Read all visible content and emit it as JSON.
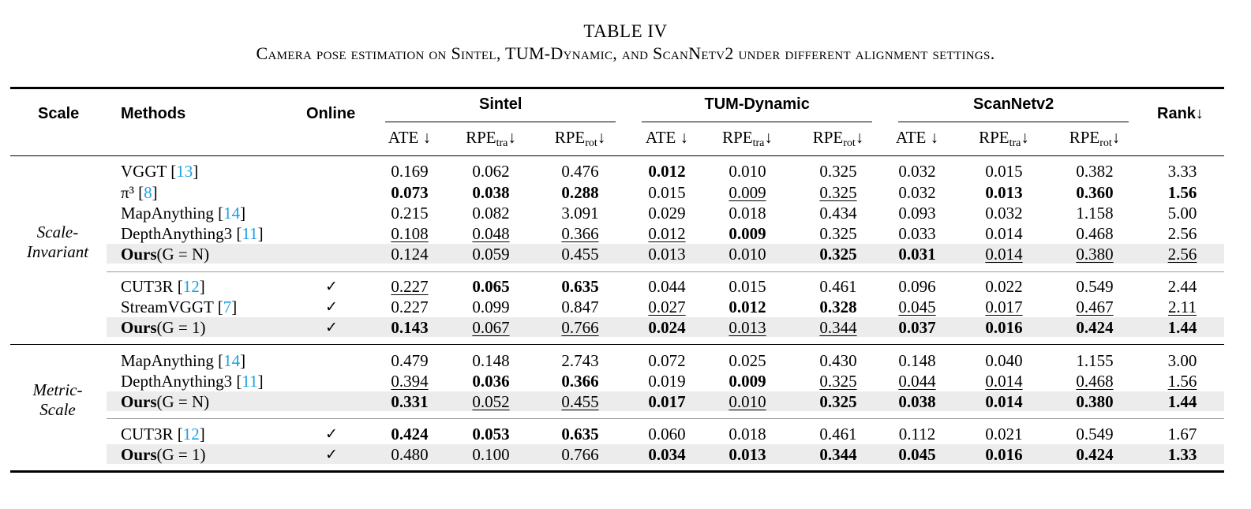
{
  "caption": {
    "title": "TABLE IV",
    "text": "Camera pose estimation on Sintel, TUM-Dynamic, and ScanNetv2 under different alignment settings."
  },
  "headers": {
    "scale": "Scale",
    "methods": "Methods",
    "online": "Online",
    "rank": "Rank↓",
    "groups": [
      "Sintel",
      "TUM-Dynamic",
      "ScanNetv2"
    ],
    "metrics": [
      {
        "base": "ATE ↓",
        "sub": ""
      },
      {
        "base": "RPE",
        "sub": "tra",
        "arrow": "↓"
      },
      {
        "base": "RPE",
        "sub": "rot",
        "arrow": "↓"
      }
    ]
  },
  "sections": [
    {
      "label": [
        "Scale-",
        "Invariant"
      ],
      "blocks": [
        [
          {
            "name": "VGGT",
            "ref": "13",
            "online": "",
            "highlight": false,
            "vals": [
              "0.169",
              "0.062",
              "0.476",
              "0.012",
              "0.010",
              "0.325",
              "0.032",
              "0.015",
              "0.382",
              "3.33"
            ],
            "fmt": [
              "",
              "",
              "",
              "b",
              "",
              "",
              "",
              "",
              "",
              ""
            ]
          },
          {
            "name": "π³",
            "ref": "8",
            "online": "",
            "highlight": false,
            "vals": [
              "0.073",
              "0.038",
              "0.288",
              "0.015",
              "0.009",
              "0.325",
              "0.032",
              "0.013",
              "0.360",
              "1.56"
            ],
            "fmt": [
              "b",
              "b",
              "b",
              "",
              "u",
              "u",
              "",
              "b",
              "b",
              "b"
            ]
          },
          {
            "name": "MapAnything",
            "ref": "14",
            "online": "",
            "highlight": false,
            "vals": [
              "0.215",
              "0.082",
              "3.091",
              "0.029",
              "0.018",
              "0.434",
              "0.093",
              "0.032",
              "1.158",
              "5.00"
            ],
            "fmt": [
              "",
              "",
              "",
              "",
              "",
              "",
              "",
              "",
              "",
              ""
            ]
          },
          {
            "name": "DepthAnything3",
            "ref": "11",
            "online": "",
            "highlight": false,
            "vals": [
              "0.108",
              "0.048",
              "0.366",
              "0.012",
              "0.009",
              "0.325",
              "0.033",
              "0.014",
              "0.468",
              "2.56"
            ],
            "fmt": [
              "u",
              "u",
              "u",
              "u",
              "b",
              "",
              "",
              "",
              "",
              ""
            ]
          },
          {
            "name": "Ours",
            "ours": true,
            "suffix": "(G = N)",
            "online": "",
            "highlight": true,
            "vals": [
              "0.124",
              "0.059",
              "0.455",
              "0.013",
              "0.010",
              "0.325",
              "0.031",
              "0.014",
              "0.380",
              "2.56"
            ],
            "fmt": [
              "",
              "",
              "",
              "",
              "",
              "b",
              "b",
              "u",
              "u",
              "u"
            ]
          }
        ],
        [
          {
            "name": "CUT3R",
            "ref": "12",
            "online": "✓",
            "highlight": false,
            "vals": [
              "0.227",
              "0.065",
              "0.635",
              "0.044",
              "0.015",
              "0.461",
              "0.096",
              "0.022",
              "0.549",
              "2.44"
            ],
            "fmt": [
              "u",
              "b",
              "b",
              "",
              "",
              "",
              "",
              "",
              "",
              ""
            ]
          },
          {
            "name": "StreamVGGT",
            "ref": "7",
            "online": "✓",
            "highlight": false,
            "vals": [
              "0.227",
              "0.099",
              "0.847",
              "0.027",
              "0.012",
              "0.328",
              "0.045",
              "0.017",
              "0.467",
              "2.11"
            ],
            "fmt": [
              "",
              "",
              "",
              "u",
              "b",
              "b",
              "u",
              "u",
              "u",
              "u"
            ]
          },
          {
            "name": "Ours",
            "ours": true,
            "suffix": "(G = 1)",
            "online": "✓",
            "highlight": true,
            "vals": [
              "0.143",
              "0.067",
              "0.766",
              "0.024",
              "0.013",
              "0.344",
              "0.037",
              "0.016",
              "0.424",
              "1.44"
            ],
            "fmt": [
              "b",
              "u",
              "u",
              "b",
              "u",
              "u",
              "b",
              "b",
              "b",
              "b"
            ]
          }
        ]
      ]
    },
    {
      "label": [
        "Metric-",
        "Scale"
      ],
      "blocks": [
        [
          {
            "name": "MapAnything",
            "ref": "14",
            "online": "",
            "highlight": false,
            "vals": [
              "0.479",
              "0.148",
              "2.743",
              "0.072",
              "0.025",
              "0.430",
              "0.148",
              "0.040",
              "1.155",
              "3.00"
            ],
            "fmt": [
              "",
              "",
              "",
              "",
              "",
              "",
              "",
              "",
              "",
              ""
            ]
          },
          {
            "name": "DepthAnything3",
            "ref": "11",
            "online": "",
            "highlight": false,
            "vals": [
              "0.394",
              "0.036",
              "0.366",
              "0.019",
              "0.009",
              "0.325",
              "0.044",
              "0.014",
              "0.468",
              "1.56"
            ],
            "fmt": [
              "u",
              "b",
              "b",
              "",
              "b",
              "u",
              "u",
              "u",
              "u",
              "u"
            ]
          },
          {
            "name": "Ours",
            "ours": true,
            "suffix": "(G = N)",
            "online": "",
            "highlight": true,
            "vals": [
              "0.331",
              "0.052",
              "0.455",
              "0.017",
              "0.010",
              "0.325",
              "0.038",
              "0.014",
              "0.380",
              "1.44"
            ],
            "fmt": [
              "b",
              "u",
              "u",
              "b",
              "u",
              "b",
              "b",
              "b",
              "b",
              "b"
            ]
          }
        ],
        [
          {
            "name": "CUT3R",
            "ref": "12",
            "online": "✓",
            "highlight": false,
            "vals": [
              "0.424",
              "0.053",
              "0.635",
              "0.060",
              "0.018",
              "0.461",
              "0.112",
              "0.021",
              "0.549",
              "1.67"
            ],
            "fmt": [
              "b",
              "b",
              "b",
              "",
              "",
              "",
              "",
              "",
              "",
              ""
            ]
          },
          {
            "name": "Ours",
            "ours": true,
            "suffix": "(G = 1)",
            "online": "✓",
            "highlight": true,
            "vals": [
              "0.480",
              "0.100",
              "0.766",
              "0.034",
              "0.013",
              "0.344",
              "0.045",
              "0.016",
              "0.424",
              "1.33"
            ],
            "fmt": [
              "",
              "",
              "",
              "b",
              "b",
              "b",
              "b",
              "b",
              "b",
              "b"
            ]
          }
        ]
      ]
    }
  ]
}
